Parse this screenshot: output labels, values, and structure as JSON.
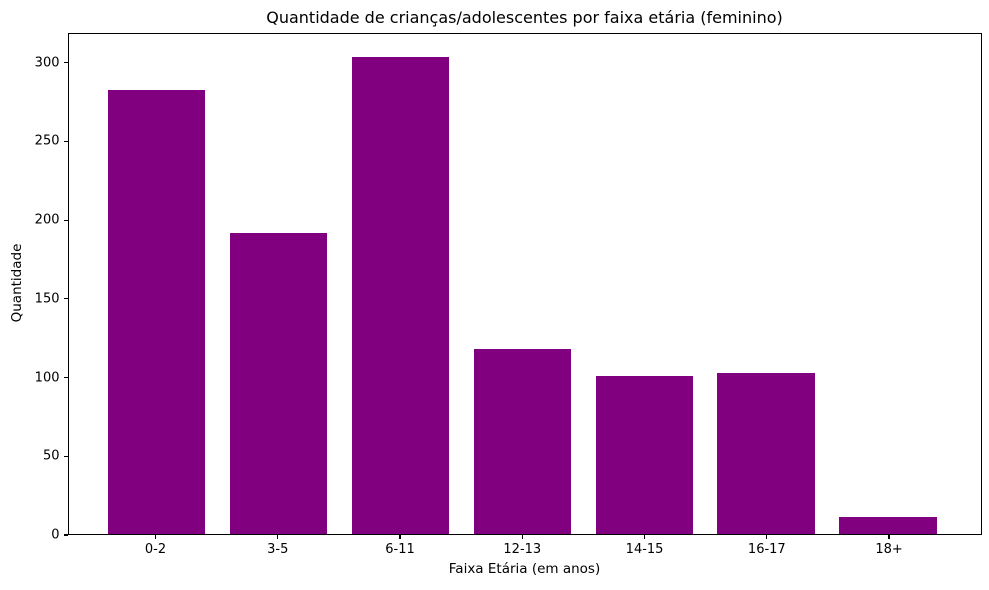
{
  "figure": {
    "background": "#ffffff"
  },
  "chart_data": {
    "type": "bar",
    "title": "Quantidade de crianças/adolescentes por faixa etária (feminino)",
    "xlabel": "Faixa Etária (em anos)",
    "ylabel": "Quantidade",
    "categories": [
      "0-2",
      "3-5",
      "6-11",
      "12-13",
      "14-15",
      "16-17",
      "18+"
    ],
    "values": [
      283,
      192,
      304,
      118,
      101,
      103,
      11
    ],
    "yticks": [
      0,
      50,
      100,
      150,
      200,
      250,
      300
    ],
    "ylim": [
      0,
      319.2
    ],
    "xlim": [
      -0.72,
      6.76
    ],
    "bar_color": "#800080",
    "bar_width": 0.8,
    "grid": false,
    "legend": false,
    "frame": true,
    "background": "#ffffff"
  }
}
